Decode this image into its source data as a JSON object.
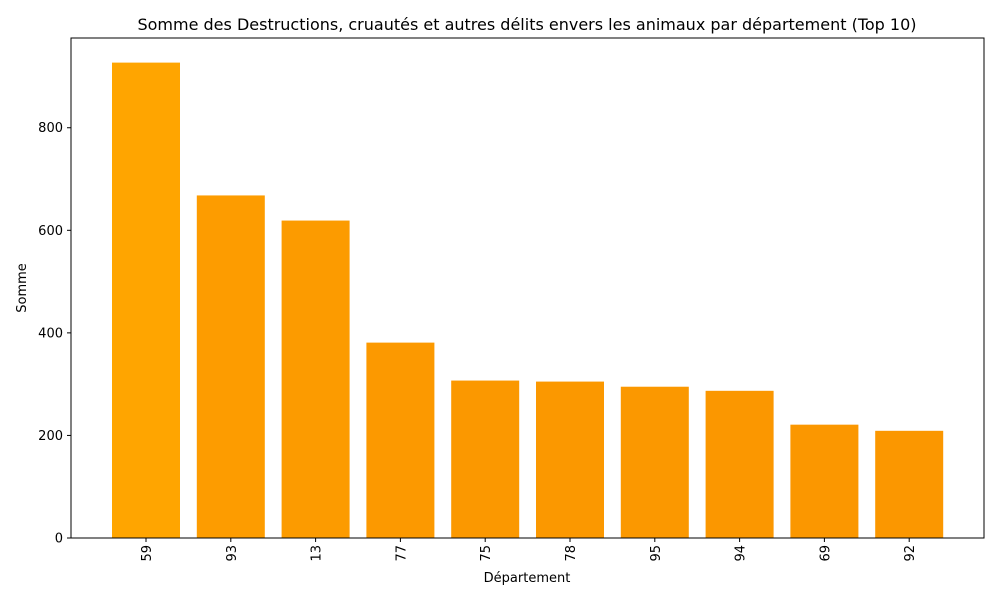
{
  "chart_data": {
    "type": "bar",
    "title": "Somme des Destructions, cruautés et autres délits envers les animaux par département (Top 10)",
    "xlabel": "Département",
    "ylabel": "Somme",
    "categories": [
      "59",
      "93",
      "13",
      "77",
      "75",
      "78",
      "95",
      "94",
      "69",
      "92"
    ],
    "values": [
      927,
      668,
      619,
      381,
      307,
      305,
      295,
      287,
      221,
      209
    ],
    "ylim": [
      0,
      975
    ],
    "yticks": [
      0,
      200,
      400,
      600,
      800
    ],
    "grid": false,
    "colors": [
      "#FFA500",
      "#FD9C00",
      "#FC9B00",
      "#FC9900",
      "#FB9800",
      "#FB9800",
      "#FB9800",
      "#FB9700",
      "#FB9700",
      "#FB9700"
    ]
  }
}
